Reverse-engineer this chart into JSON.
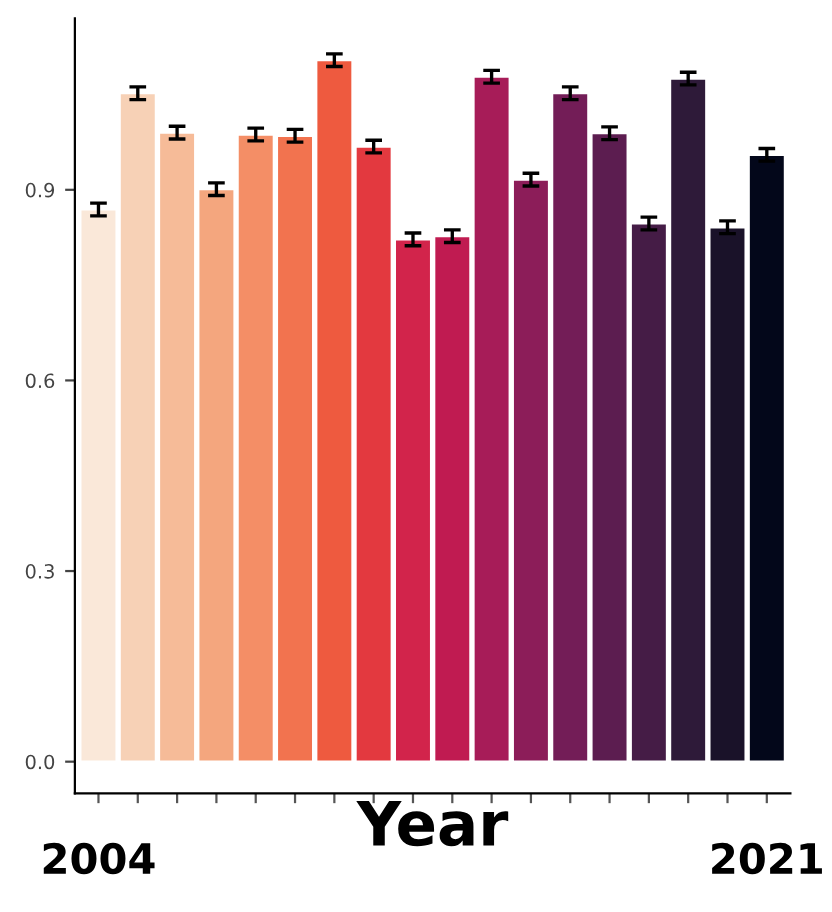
{
  "chart_data": {
    "type": "bar",
    "xlabel": "Year",
    "categories": [
      "2004",
      null,
      null,
      null,
      null,
      null,
      null,
      null,
      null,
      null,
      null,
      null,
      null,
      null,
      null,
      null,
      null,
      "2021"
    ],
    "values": [
      0.869,
      1.052,
      0.99,
      0.901,
      0.987,
      0.985,
      1.104,
      0.968,
      0.822,
      0.827,
      1.078,
      0.916,
      1.052,
      0.989,
      0.847,
      1.075,
      0.841,
      0.955
    ],
    "errors": [
      0.01,
      0.01,
      0.01,
      0.01,
      0.01,
      0.01,
      0.01,
      0.01,
      0.01,
      0.01,
      0.01,
      0.01,
      0.01,
      0.01,
      0.01,
      0.01,
      0.01,
      0.01
    ],
    "colors": [
      "#fae8d9",
      "#f7d1b6",
      "#f6bb98",
      "#f4a67e",
      "#f48e66",
      "#f2734f",
      "#ee5a3f",
      "#e3393f",
      "#d2244b",
      "#c01b51",
      "#a71c58",
      "#8c1d59",
      "#731d57",
      "#5c1d50",
      "#451c46",
      "#2e1a39",
      "#1a1229",
      "#03071a"
    ],
    "ylim": [
      -0.05,
      1.17
    ],
    "yticks": [
      {
        "value": 0,
        "label": "0.0"
      },
      {
        "value": 0.3,
        "label": "0.3"
      },
      {
        "value": 0.6,
        "label": "0.6"
      },
      {
        "value": 0.9,
        "label": "0.9"
      }
    ],
    "grid": false,
    "legend": false
  }
}
